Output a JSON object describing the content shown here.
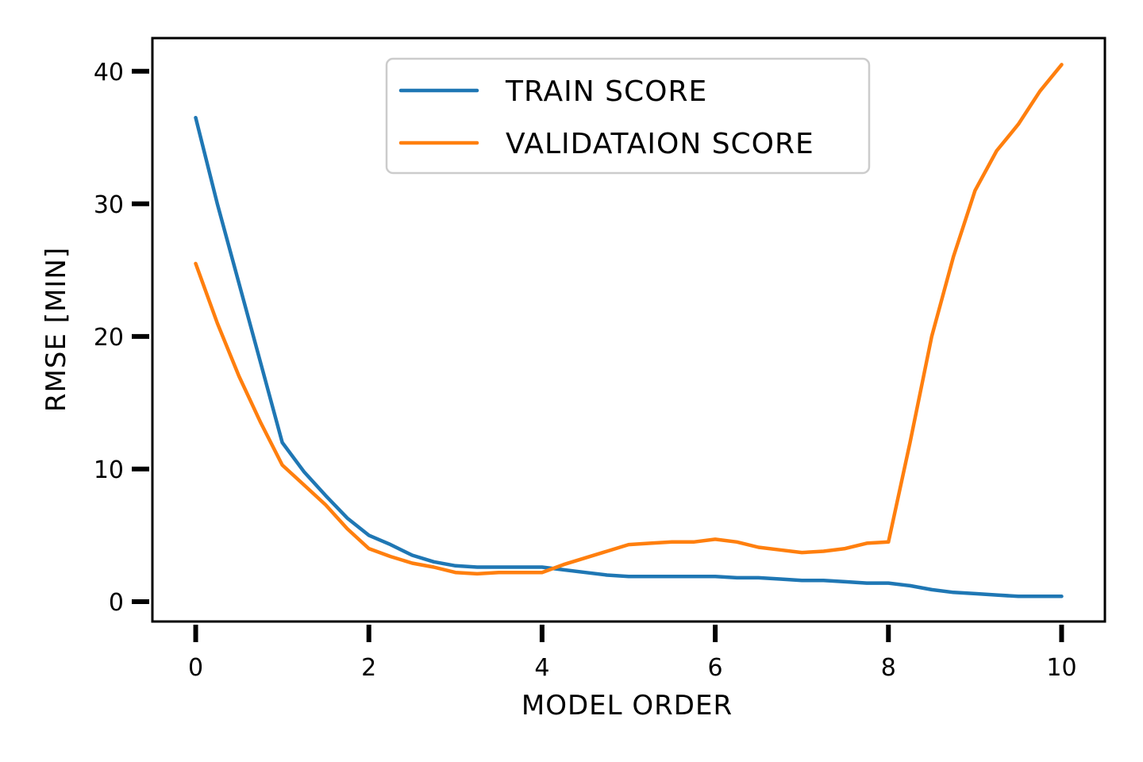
{
  "chart_data": {
    "type": "line",
    "title": "",
    "xlabel": "model order",
    "ylabel": "RMSE [min]",
    "xlim": [
      -0.5,
      10.5
    ],
    "ylim": [
      -1.5,
      42.5
    ],
    "xticks": [
      "0",
      "2",
      "4",
      "6",
      "8",
      "10"
    ],
    "yticks": [
      "0",
      "10",
      "20",
      "30",
      "40"
    ],
    "grid": false,
    "legend_position": "top-center",
    "series": [
      {
        "name": "train score",
        "color": "#1f77b4",
        "x": [
          0,
          0.25,
          0.5,
          0.75,
          1,
          1.25,
          1.5,
          1.75,
          2,
          2.25,
          2.5,
          2.75,
          3,
          3.25,
          3.5,
          3.75,
          4,
          4.25,
          4.5,
          4.75,
          5,
          5.25,
          5.5,
          5.75,
          6,
          6.25,
          6.5,
          6.75,
          7,
          7.25,
          7.5,
          7.75,
          8,
          8.25,
          8.5,
          8.75,
          9,
          9.25,
          9.5,
          9.75,
          10
        ],
        "y": [
          36.5,
          30,
          24,
          18,
          12,
          9.8,
          8,
          6.3,
          5,
          4.3,
          3.5,
          3,
          2.7,
          2.6,
          2.6,
          2.6,
          2.6,
          2.4,
          2.2,
          2.0,
          1.9,
          1.9,
          1.9,
          1.9,
          1.9,
          1.8,
          1.8,
          1.7,
          1.6,
          1.6,
          1.5,
          1.4,
          1.4,
          1.2,
          0.9,
          0.7,
          0.6,
          0.5,
          0.4,
          0.4,
          0.4
        ]
      },
      {
        "name": "validataion score",
        "color": "#ff7f0e",
        "x": [
          0,
          0.25,
          0.5,
          0.75,
          1,
          1.25,
          1.5,
          1.75,
          2,
          2.25,
          2.5,
          2.75,
          3,
          3.25,
          3.5,
          3.75,
          4,
          4.25,
          4.5,
          4.75,
          5,
          5.25,
          5.5,
          5.75,
          6,
          6.25,
          6.5,
          6.75,
          7,
          7.25,
          7.5,
          7.75,
          8,
          8.25,
          8.5,
          8.75,
          9,
          9.25,
          9.5,
          9.75,
          10
        ],
        "y": [
          25.5,
          21,
          17,
          13.5,
          10.3,
          8.8,
          7.3,
          5.5,
          4.0,
          3.4,
          2.9,
          2.6,
          2.2,
          2.1,
          2.2,
          2.2,
          2.2,
          2.8,
          3.3,
          3.8,
          4.3,
          4.4,
          4.5,
          4.5,
          4.7,
          4.5,
          4.1,
          3.9,
          3.7,
          3.8,
          4.0,
          4.4,
          4.5,
          12,
          20,
          26,
          31,
          34,
          36,
          38.5,
          40.5
        ]
      }
    ]
  }
}
